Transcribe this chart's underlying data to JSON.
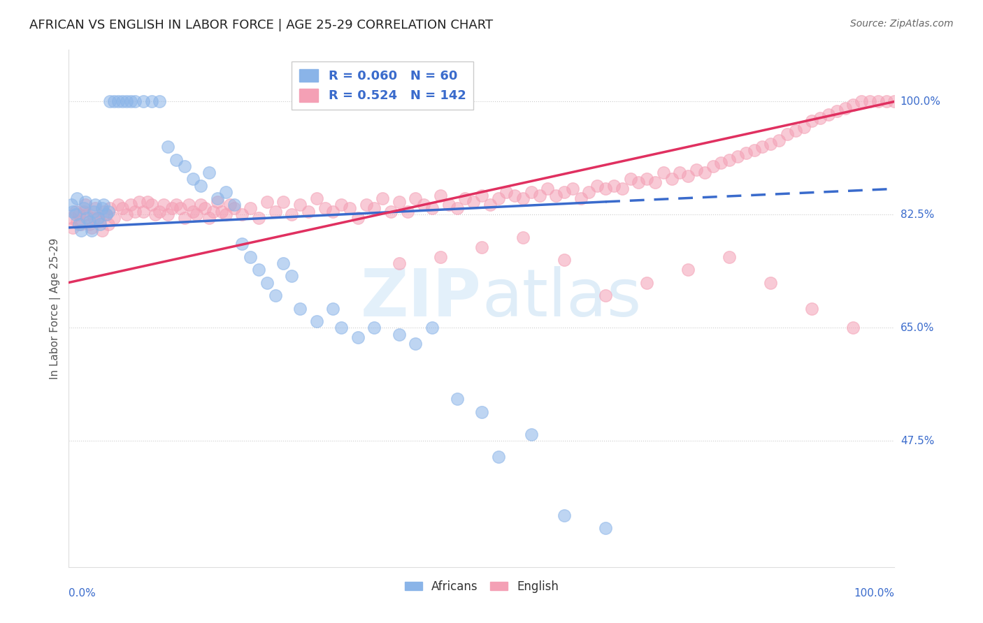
{
  "title": "AFRICAN VS ENGLISH IN LABOR FORCE | AGE 25-29 CORRELATION CHART",
  "source": "Source: ZipAtlas.com",
  "ylabel": "In Labor Force | Age 25-29",
  "africans_R": 0.06,
  "africans_N": 60,
  "english_R": 0.524,
  "english_N": 142,
  "legend_label_africans": "Africans",
  "legend_label_english": "English",
  "africans_color": "#8ab4e8",
  "english_color": "#f4a0b5",
  "africans_line_color": "#3a6bcc",
  "english_line_color": "#e03060",
  "africans_x": [
    0.3,
    0.5,
    0.8,
    1.0,
    1.2,
    1.5,
    1.8,
    2.0,
    2.2,
    2.5,
    2.8,
    3.0,
    3.2,
    3.5,
    3.8,
    4.0,
    4.2,
    4.5,
    4.8,
    5.0,
    5.5,
    6.0,
    6.5,
    7.0,
    7.5,
    8.0,
    9.0,
    10.0,
    11.0,
    12.0,
    13.0,
    14.0,
    15.0,
    16.0,
    17.0,
    18.0,
    19.0,
    20.0,
    21.0,
    22.0,
    23.0,
    24.0,
    25.0,
    26.0,
    27.0,
    28.0,
    30.0,
    32.0,
    33.0,
    35.0,
    37.0,
    40.0,
    42.0,
    44.0,
    47.0,
    50.0,
    52.0,
    56.0,
    60.0,
    65.0
  ],
  "africans_y": [
    84.0,
    83.0,
    82.5,
    85.0,
    81.0,
    80.0,
    83.5,
    84.5,
    82.0,
    81.5,
    80.0,
    83.0,
    84.0,
    82.0,
    81.0,
    83.5,
    84.0,
    82.5,
    83.0,
    100.0,
    100.0,
    100.0,
    100.0,
    100.0,
    100.0,
    100.0,
    100.0,
    100.0,
    100.0,
    93.0,
    91.0,
    90.0,
    88.0,
    87.0,
    89.0,
    85.0,
    86.0,
    84.0,
    78.0,
    76.0,
    74.0,
    72.0,
    70.0,
    75.0,
    73.0,
    68.0,
    66.0,
    68.0,
    65.0,
    63.5,
    65.0,
    64.0,
    62.5,
    65.0,
    54.0,
    52.0,
    45.0,
    48.5,
    36.0,
    34.0
  ],
  "english_x": [
    0.3,
    0.5,
    0.8,
    1.0,
    1.2,
    1.5,
    1.8,
    2.0,
    2.2,
    2.5,
    2.8,
    3.0,
    3.2,
    3.5,
    3.8,
    4.0,
    4.2,
    4.5,
    4.8,
    5.0,
    5.5,
    6.0,
    6.5,
    7.0,
    7.5,
    8.0,
    8.5,
    9.0,
    9.5,
    10.0,
    10.5,
    11.0,
    11.5,
    12.0,
    12.5,
    13.0,
    13.5,
    14.0,
    14.5,
    15.0,
    15.5,
    16.0,
    16.5,
    17.0,
    17.5,
    18.0,
    18.5,
    19.0,
    19.5,
    20.0,
    21.0,
    22.0,
    23.0,
    24.0,
    25.0,
    26.0,
    27.0,
    28.0,
    29.0,
    30.0,
    31.0,
    32.0,
    33.0,
    34.0,
    35.0,
    36.0,
    37.0,
    38.0,
    39.0,
    40.0,
    41.0,
    42.0,
    43.0,
    44.0,
    45.0,
    46.0,
    47.0,
    48.0,
    49.0,
    50.0,
    51.0,
    52.0,
    53.0,
    54.0,
    55.0,
    56.0,
    57.0,
    58.0,
    59.0,
    60.0,
    61.0,
    62.0,
    63.0,
    64.0,
    65.0,
    66.0,
    67.0,
    68.0,
    69.0,
    70.0,
    71.0,
    72.0,
    73.0,
    74.0,
    75.0,
    76.0,
    77.0,
    78.0,
    79.0,
    80.0,
    81.0,
    82.0,
    83.0,
    84.0,
    85.0,
    86.0,
    87.0,
    88.0,
    89.0,
    90.0,
    91.0,
    92.0,
    93.0,
    94.0,
    95.0,
    96.0,
    97.0,
    98.0,
    99.0,
    100.0,
    40.0,
    45.0,
    50.0,
    55.0,
    60.0,
    65.0,
    70.0,
    75.0,
    80.0,
    85.0,
    90.0,
    95.0
  ],
  "english_y": [
    82.0,
    80.5,
    83.0,
    81.5,
    82.5,
    81.0,
    83.0,
    84.0,
    82.5,
    81.0,
    80.5,
    82.0,
    83.5,
    82.0,
    81.5,
    80.0,
    83.0,
    82.5,
    81.0,
    83.5,
    82.0,
    84.0,
    83.5,
    82.5,
    84.0,
    83.0,
    84.5,
    83.0,
    84.5,
    84.0,
    82.5,
    83.0,
    84.0,
    82.5,
    83.5,
    84.0,
    83.5,
    82.0,
    84.0,
    83.0,
    82.5,
    84.0,
    83.5,
    82.0,
    83.0,
    84.5,
    83.0,
    82.5,
    84.0,
    83.5,
    82.5,
    83.5,
    82.0,
    84.5,
    83.0,
    84.5,
    82.5,
    84.0,
    83.0,
    85.0,
    83.5,
    83.0,
    84.0,
    83.5,
    82.0,
    84.0,
    83.5,
    85.0,
    83.0,
    84.5,
    83.0,
    85.0,
    84.0,
    83.5,
    85.5,
    84.0,
    83.5,
    85.0,
    84.5,
    85.5,
    84.0,
    85.0,
    86.0,
    85.5,
    85.0,
    86.0,
    85.5,
    86.5,
    85.5,
    86.0,
    86.5,
    85.0,
    86.0,
    87.0,
    86.5,
    87.0,
    86.5,
    88.0,
    87.5,
    88.0,
    87.5,
    89.0,
    88.0,
    89.0,
    88.5,
    89.5,
    89.0,
    90.0,
    90.5,
    91.0,
    91.5,
    92.0,
    92.5,
    93.0,
    93.5,
    94.0,
    95.0,
    95.5,
    96.0,
    97.0,
    97.5,
    98.0,
    98.5,
    99.0,
    99.5,
    100.0,
    100.0,
    100.0,
    100.0,
    100.0,
    75.0,
    76.0,
    77.5,
    79.0,
    75.5,
    70.0,
    72.0,
    74.0,
    76.0,
    72.0,
    68.0,
    65.0
  ],
  "af_trend_x0": 0.0,
  "af_trend_y0": 80.5,
  "af_trend_x1": 65.0,
  "af_trend_y1": 84.5,
  "af_dash_x0": 65.0,
  "af_dash_y0": 84.5,
  "af_dash_x1": 100.0,
  "af_dash_y1": 86.5,
  "en_trend_x0": 0.0,
  "en_trend_y0": 72.0,
  "en_trend_x1": 100.0,
  "en_trend_y1": 100.0,
  "xlim": [
    0,
    100
  ],
  "ylim": [
    28,
    108
  ],
  "ytick_positions": [
    47.5,
    65.0,
    82.5,
    100.0
  ],
  "ytick_labels": [
    "47.5%",
    "65.0%",
    "82.5%",
    "100.0%"
  ],
  "title_fontsize": 13,
  "label_color": "#3a6bcc",
  "tick_color": "#aaaaaa",
  "grid_color": "#cccccc"
}
